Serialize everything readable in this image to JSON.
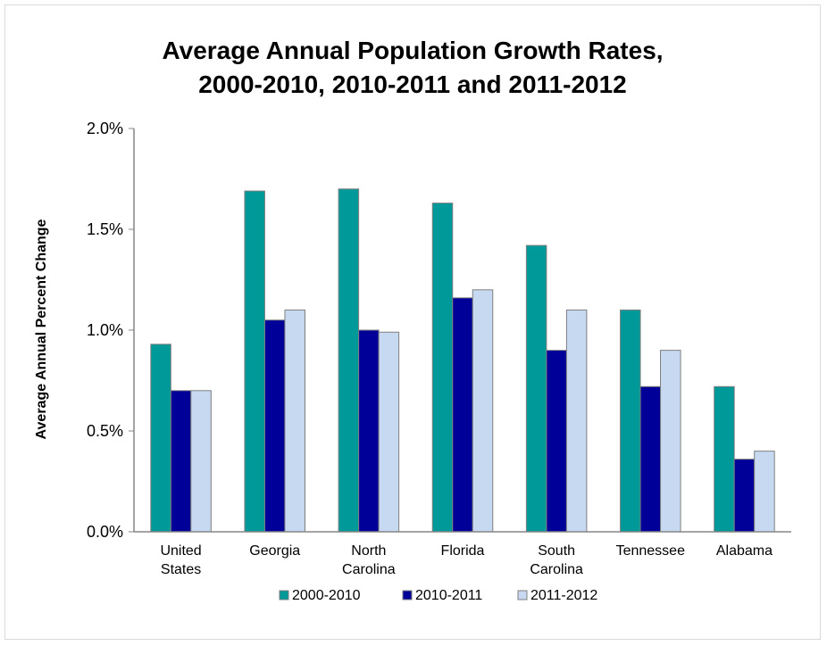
{
  "chart_data": {
    "type": "bar",
    "title_lines": [
      "Average Annual Population Growth Rates,",
      "2000-2010, 2010-2011 and 2011-2012"
    ],
    "xlabel": "",
    "ylabel": "Average Annual Percent Change",
    "categories": [
      [
        "United",
        "States"
      ],
      [
        "Georgia"
      ],
      [
        "North",
        "Carolina"
      ],
      [
        "Florida"
      ],
      [
        "South",
        "Carolina"
      ],
      [
        "Tennessee"
      ],
      [
        "Alabama"
      ]
    ],
    "series": [
      {
        "name": "2000-2010",
        "color": "#009999",
        "values": [
          0.93,
          1.69,
          1.7,
          1.63,
          1.42,
          1.1,
          0.72
        ]
      },
      {
        "name": "2010-2011",
        "color": "#000099",
        "values": [
          0.7,
          1.05,
          1.0,
          1.16,
          0.9,
          0.72,
          0.36
        ]
      },
      {
        "name": "2011-2012",
        "color": "#C6D9F1",
        "values": [
          0.7,
          1.1,
          0.99,
          1.2,
          1.1,
          0.9,
          0.4
        ]
      }
    ],
    "yticks": [
      "0.0%",
      "0.5%",
      "1.0%",
      "1.5%",
      "2.0%"
    ],
    "ytick_values": [
      0,
      0.5,
      1.0,
      1.5,
      2.0
    ],
    "ylim": [
      0,
      2.0
    ],
    "grid": false,
    "legend_position": "bottom"
  }
}
